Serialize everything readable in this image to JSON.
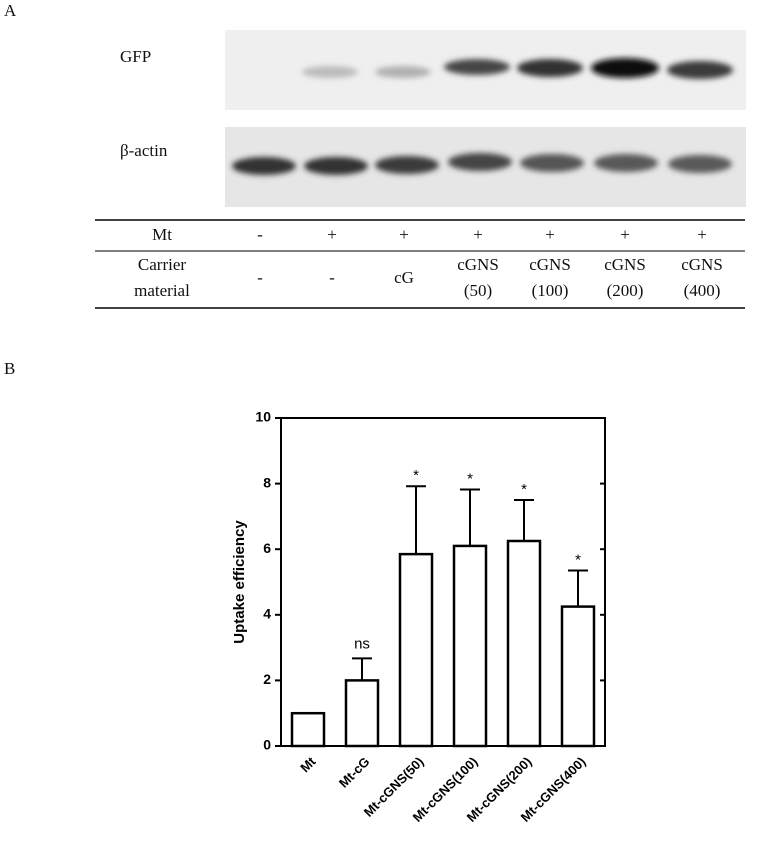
{
  "panel_a": {
    "label": "A",
    "blots": [
      {
        "label": "GFP"
      },
      {
        "label": "β-actin"
      }
    ],
    "table": {
      "rows": [
        {
          "label": [
            "Mt"
          ],
          "cells": [
            [
              "-"
            ],
            [
              "+"
            ],
            [
              "+"
            ],
            [
              "+"
            ],
            [
              "+"
            ],
            [
              "+"
            ],
            [
              "+"
            ]
          ]
        },
        {
          "label": [
            "Carrier",
            "material"
          ],
          "cells": [
            [
              "-"
            ],
            [
              "-"
            ],
            [
              "cG"
            ],
            [
              "cGNS",
              "(50)"
            ],
            [
              "cGNS",
              "(100)"
            ],
            [
              "cGNS",
              "(200)"
            ],
            [
              "cGNS",
              "(400)"
            ]
          ]
        }
      ]
    }
  },
  "panel_b": {
    "label": "B"
  },
  "chart_data": {
    "type": "bar",
    "y_label": "Uptake efficiency",
    "categories": [
      "Mt",
      "Mt-cG",
      "Mt-cGNS(50)",
      "Mt-cGNS(100)",
      "Mt-cGNS(200)",
      "Mt-cGNS(400)"
    ],
    "values": [
      1,
      2,
      5.85,
      6.1,
      6.25,
      4.25
    ],
    "errors": [
      null,
      0.67,
      2.07,
      1.72,
      1.25,
      1.1
    ],
    "annotations": [
      null,
      "ns",
      "*",
      "*",
      "*",
      "*"
    ],
    "color": "#ffffff",
    "edge_color": "#000000",
    "ylim": [
      0,
      10
    ],
    "yticks": [
      0,
      2,
      4,
      6,
      8,
      10
    ]
  }
}
